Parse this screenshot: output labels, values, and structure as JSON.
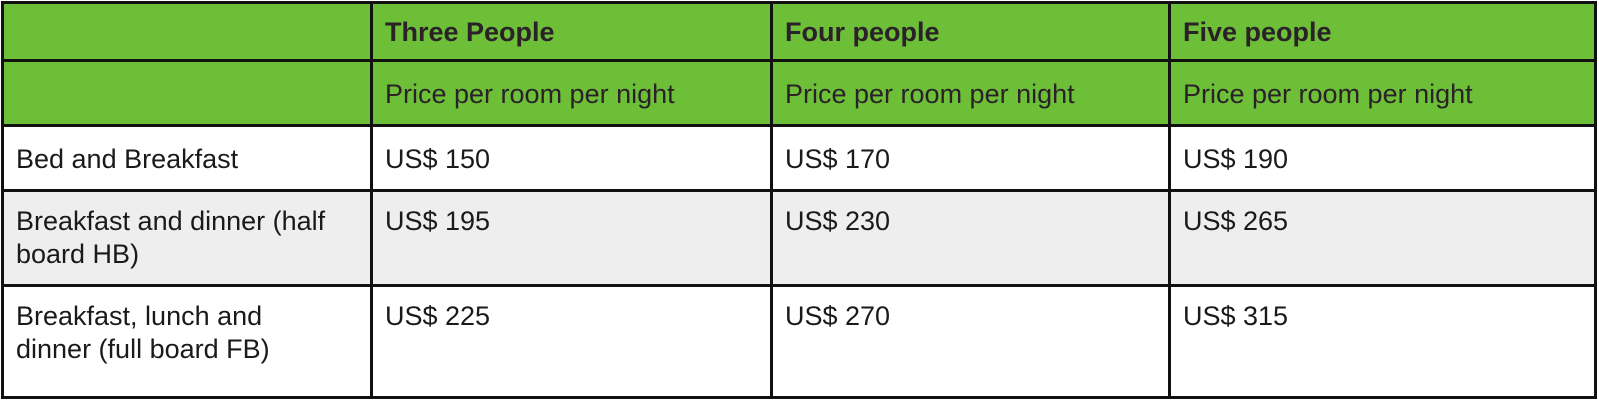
{
  "header": {
    "columns": [
      "",
      "Three People",
      "Four people",
      "Five people"
    ],
    "subheaders": [
      "",
      "Price per room per night",
      "Price per room per night",
      "Price per room per night"
    ]
  },
  "rows": [
    {
      "label": "Bed and Breakfast",
      "values": [
        "US$ 150",
        "US$ 170",
        "US$ 190"
      ]
    },
    {
      "label": "Breakfast and dinner (half board HB)",
      "values": [
        "US$ 195",
        "US$ 230",
        "US$ 265"
      ]
    },
    {
      "label": "Breakfast, lunch and dinner (full board FB)",
      "values": [
        "US$ 225",
        "US$ 270",
        "US$ 315"
      ]
    }
  ],
  "colors": {
    "header_bg": "#6dbf38",
    "alt_row_bg": "#eeeeee"
  }
}
